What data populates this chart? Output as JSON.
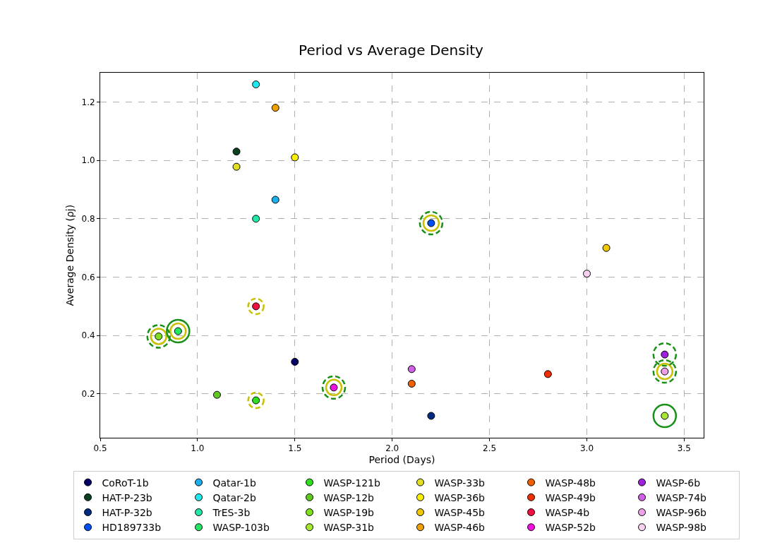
{
  "chart_data": {
    "type": "scatter",
    "title": "Period vs Average Density",
    "xlabel": "Period (Days)",
    "ylabel": "Average Density (ρj)",
    "xlim": [
      0.5,
      3.6
    ],
    "xticks": [
      0.5,
      {
        "value": 1,
        "label": "1.0"
      },
      1.5,
      {
        "value": 2,
        "label": "2.0"
      },
      2.5,
      {
        "value": 3,
        "label": "3.0"
      },
      3.5
    ],
    "ylim": [
      0.05,
      1.3
    ],
    "yticks": [
      0.2,
      0.4,
      0.6,
      0.8,
      {
        "value": 1,
        "label": "1.0"
      },
      1.2
    ],
    "grid": true,
    "legend": "bottom",
    "marker": "circle",
    "series": [
      {
        "name": "CoRoT-1b",
        "color": "#000066",
        "x": [
          1.5
        ],
        "values": [
          0.31
        ]
      },
      {
        "name": "HAT-P-23b",
        "color": "#0a4020",
        "x": [
          1.2
        ],
        "values": [
          1.03
        ]
      },
      {
        "name": "HAT-P-32b",
        "color": "#002a80",
        "x": [
          2.2
        ],
        "values": [
          0.125
        ]
      },
      {
        "name": "HD189733b",
        "color": "#0050f0",
        "x": [
          2.2
        ],
        "values": [
          0.785
        ]
      },
      {
        "name": "Qatar-1b",
        "color": "#1ab0ee",
        "x": [
          1.4
        ],
        "values": [
          0.865
        ]
      },
      {
        "name": "Qatar-2b",
        "color": "#1ee8ee",
        "x": [
          1.3
        ],
        "values": [
          1.26
        ]
      },
      {
        "name": "TrES-3b",
        "color": "#20e8a8",
        "x": [
          1.3
        ],
        "values": [
          0.8
        ]
      },
      {
        "name": "WASP-103b",
        "color": "#20e860",
        "x": [
          0.9
        ],
        "values": [
          0.415
        ]
      },
      {
        "name": "WASP-121b",
        "color": "#30e020",
        "x": [
          1.3
        ],
        "values": [
          0.178
        ]
      },
      {
        "name": "WASP-12b",
        "color": "#60c820",
        "x": [
          1.1
        ],
        "values": [
          0.197
        ]
      },
      {
        "name": "WASP-19b",
        "color": "#80e020",
        "x": [
          0.8
        ],
        "values": [
          0.397
        ]
      },
      {
        "name": "WASP-31b",
        "color": "#a8e830",
        "x": [
          3.4
        ],
        "values": [
          0.125
        ]
      },
      {
        "name": "WASP-33b",
        "color": "#e0e020",
        "x": [
          1.2
        ],
        "values": [
          0.978
        ]
      },
      {
        "name": "WASP-36b",
        "color": "#f8f000",
        "x": [
          1.5
        ],
        "values": [
          1.01
        ]
      },
      {
        "name": "WASP-45b",
        "color": "#f0c800",
        "x": [
          3.1
        ],
        "values": [
          0.7
        ]
      },
      {
        "name": "WASP-46b",
        "color": "#f0a000",
        "x": [
          1.4
        ],
        "values": [
          1.18
        ]
      },
      {
        "name": "WASP-48b",
        "color": "#f06000",
        "x": [
          2.1
        ],
        "values": [
          0.235
        ]
      },
      {
        "name": "WASP-49b",
        "color": "#f03000",
        "x": [
          2.8
        ],
        "values": [
          0.268
        ]
      },
      {
        "name": "WASP-4b",
        "color": "#f01040",
        "x": [
          1.3
        ],
        "values": [
          0.5
        ]
      },
      {
        "name": "WASP-52b",
        "color": "#f010e0",
        "x": [
          1.7
        ],
        "values": [
          0.222
        ]
      },
      {
        "name": "WASP-6b",
        "color": "#a020e0",
        "x": [
          3.4
        ],
        "values": [
          0.335
        ]
      },
      {
        "name": "WASP-74b",
        "color": "#d060e8",
        "x": [
          2.1
        ],
        "values": [
          0.285
        ]
      },
      {
        "name": "WASP-96b",
        "color": "#f0a0e8",
        "x": [
          3.4
        ],
        "values": [
          0.277
        ]
      },
      {
        "name": "WASP-98b",
        "color": "#f8d0f0",
        "x": [
          3.0
        ],
        "values": [
          0.612
        ]
      },
      {
        "color": "#c8c000",
        "line_style": "solid",
        "x": [
          0.8,
          0.9,
          2.2,
          1.7,
          3.4
        ],
        "values": [
          0.397,
          0.415,
          0.785,
          0.222,
          0.277
        ]
      },
      {
        "color": "#c8c000",
        "line_style": "dashed",
        "x": [
          1.3,
          1.3
        ],
        "values": [
          0.5,
          0.178
        ]
      },
      {
        "color": "#189018",
        "line_style": "dashed",
        "x": [
          0.8,
          2.2,
          1.7,
          3.4,
          3.4
        ],
        "values": [
          0.397,
          0.785,
          0.222,
          0.335,
          0.277
        ]
      },
      {
        "color": "#189018",
        "line_style": "solid",
        "x": [
          0.9,
          3.4
        ],
        "values": [
          0.415,
          0.125
        ]
      }
    ]
  }
}
